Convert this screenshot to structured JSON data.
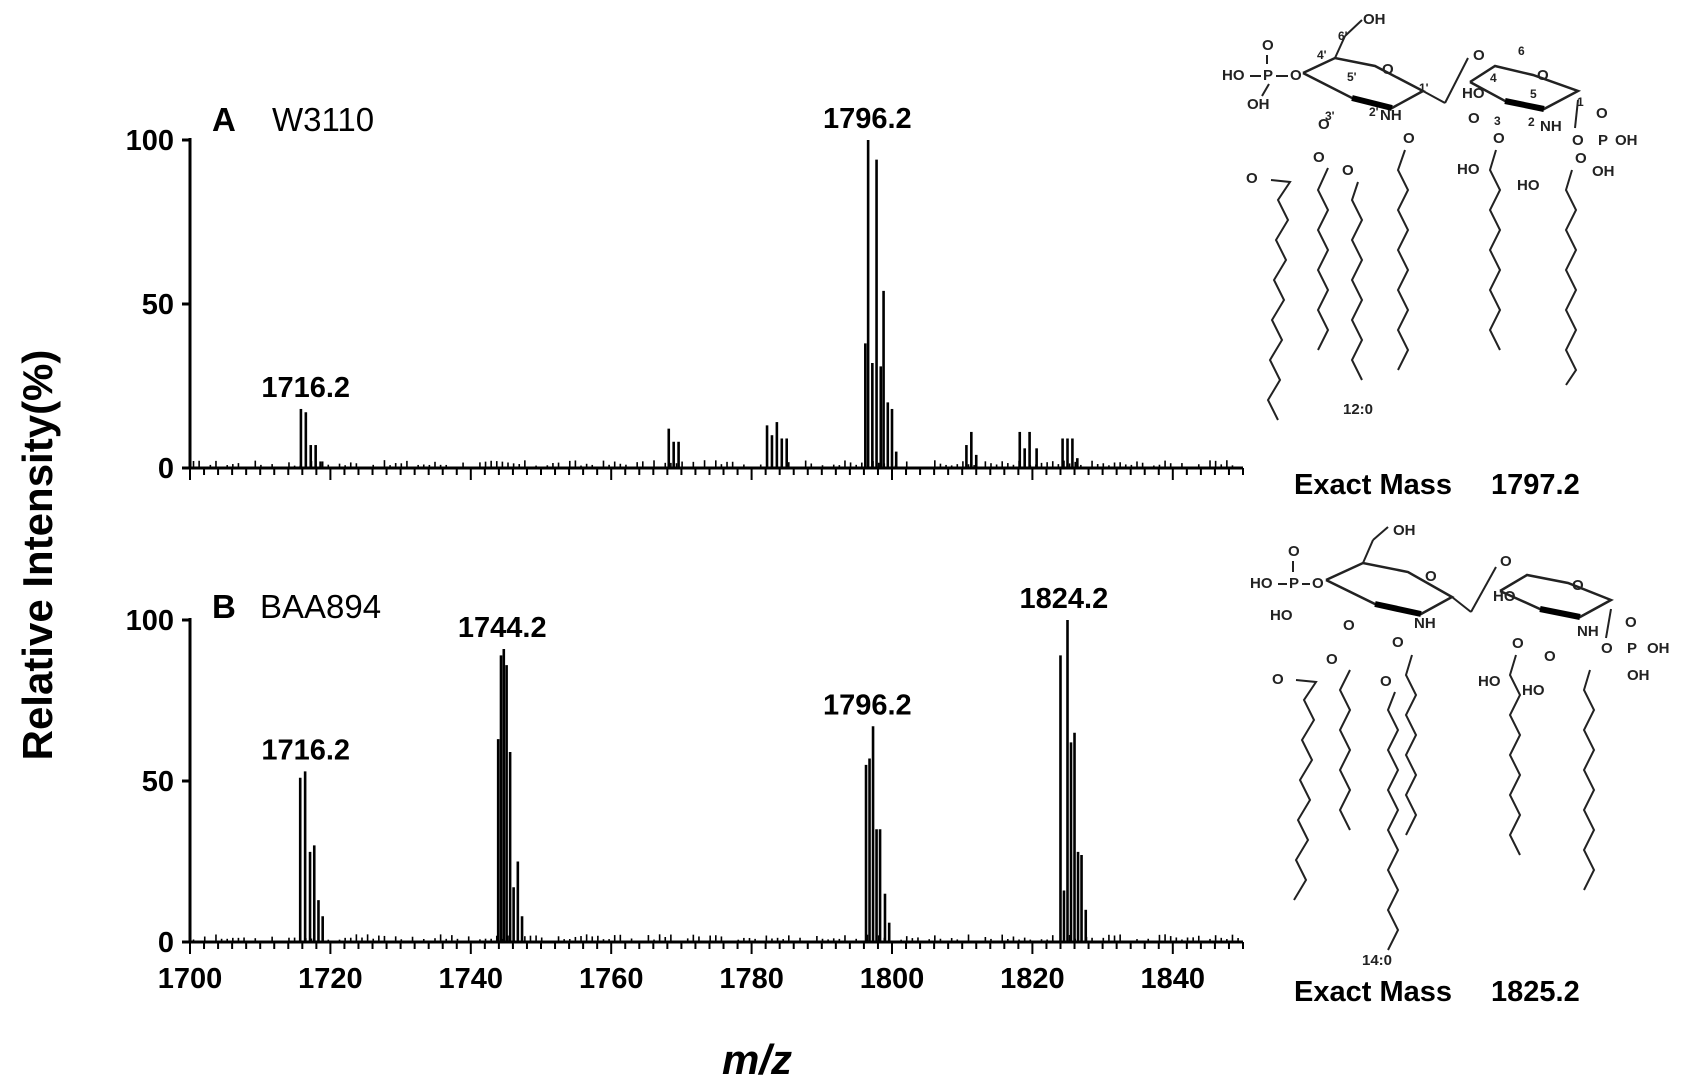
{
  "chart_data": [
    {
      "type": "bar",
      "panel": "A",
      "title": "W3110",
      "xlabel": "m/z",
      "ylabel": "Relative Intensity(%)",
      "xlim": [
        1700,
        1850
      ],
      "ylim": [
        0,
        100
      ],
      "yticks": [
        "0",
        "50",
        "100"
      ],
      "peaks": [
        {
          "x": 1715.8,
          "y": 18
        },
        {
          "x": 1716.5,
          "y": 17
        },
        {
          "x": 1717.2,
          "y": 7
        },
        {
          "x": 1717.9,
          "y": 7
        },
        {
          "x": 1718.6,
          "y": 2
        },
        {
          "x": 1768.2,
          "y": 12
        },
        {
          "x": 1768.9,
          "y": 8
        },
        {
          "x": 1769.6,
          "y": 8
        },
        {
          "x": 1782.2,
          "y": 13
        },
        {
          "x": 1782.9,
          "y": 10
        },
        {
          "x": 1783.6,
          "y": 14
        },
        {
          "x": 1784.3,
          "y": 9
        },
        {
          "x": 1785.0,
          "y": 9
        },
        {
          "x": 1796.2,
          "y": 38
        },
        {
          "x": 1796.6,
          "y": 100
        },
        {
          "x": 1797.2,
          "y": 32
        },
        {
          "x": 1797.8,
          "y": 94
        },
        {
          "x": 1798.4,
          "y": 31
        },
        {
          "x": 1798.8,
          "y": 54
        },
        {
          "x": 1799.4,
          "y": 20
        },
        {
          "x": 1800.0,
          "y": 18
        },
        {
          "x": 1800.6,
          "y": 5
        },
        {
          "x": 1810.6,
          "y": 7
        },
        {
          "x": 1811.3,
          "y": 11
        },
        {
          "x": 1812.0,
          "y": 4
        },
        {
          "x": 1818.2,
          "y": 11
        },
        {
          "x": 1818.9,
          "y": 6
        },
        {
          "x": 1819.6,
          "y": 11
        },
        {
          "x": 1820.6,
          "y": 6
        },
        {
          "x": 1824.3,
          "y": 9
        },
        {
          "x": 1825.0,
          "y": 9
        },
        {
          "x": 1825.7,
          "y": 9
        },
        {
          "x": 1826.4,
          "y": 3
        }
      ],
      "annotations": [
        {
          "x": 1716.2,
          "label": "1716.2"
        },
        {
          "x": 1796.2,
          "label": "1796.2"
        }
      ]
    },
    {
      "type": "bar",
      "panel": "B",
      "title": "BAA894",
      "xlabel": "m/z",
      "ylabel": "Relative Intensity(%)",
      "xlim": [
        1700,
        1850
      ],
      "ylim": [
        0,
        100
      ],
      "yticks": [
        "0",
        "50",
        "100"
      ],
      "xticks": [
        "1700",
        "1720",
        "1740",
        "1760",
        "1780",
        "1800",
        "1820",
        "1840"
      ],
      "peaks": [
        {
          "x": 1715.7,
          "y": 51
        },
        {
          "x": 1716.4,
          "y": 53
        },
        {
          "x": 1717.1,
          "y": 28
        },
        {
          "x": 1717.7,
          "y": 30
        },
        {
          "x": 1718.3,
          "y": 13
        },
        {
          "x": 1718.9,
          "y": 8
        },
        {
          "x": 1743.9,
          "y": 63
        },
        {
          "x": 1744.3,
          "y": 89
        },
        {
          "x": 1744.7,
          "y": 91
        },
        {
          "x": 1745.1,
          "y": 86
        },
        {
          "x": 1745.6,
          "y": 59
        },
        {
          "x": 1746.1,
          "y": 17
        },
        {
          "x": 1746.7,
          "y": 25
        },
        {
          "x": 1747.3,
          "y": 8
        },
        {
          "x": 1796.3,
          "y": 55
        },
        {
          "x": 1796.8,
          "y": 57
        },
        {
          "x": 1797.3,
          "y": 67
        },
        {
          "x": 1797.8,
          "y": 35
        },
        {
          "x": 1798.3,
          "y": 35
        },
        {
          "x": 1799.0,
          "y": 15
        },
        {
          "x": 1799.6,
          "y": 6
        },
        {
          "x": 1824.0,
          "y": 89
        },
        {
          "x": 1824.5,
          "y": 16
        },
        {
          "x": 1825.0,
          "y": 100
        },
        {
          "x": 1825.5,
          "y": 62
        },
        {
          "x": 1826.0,
          "y": 65
        },
        {
          "x": 1826.5,
          "y": 28
        },
        {
          "x": 1827.0,
          "y": 27
        },
        {
          "x": 1827.6,
          "y": 10
        }
      ],
      "annotations": [
        {
          "x": 1716.2,
          "label": "1716.2"
        },
        {
          "x": 1744.2,
          "label": "1744.2"
        },
        {
          "x": 1796.2,
          "label": "1796.2"
        },
        {
          "x": 1824.2,
          "label": "1824.2"
        }
      ]
    }
  ],
  "structures": [
    {
      "name": "lipid-a-structure-a",
      "exact_mass_label": "Exact Mass",
      "exact_mass_value": "1797.2",
      "chain_label": "12:0",
      "atom_labels": [
        "OH",
        "O",
        "P",
        "HO",
        "O",
        "O",
        "NH",
        "NH",
        "O",
        "HO",
        "O",
        "O",
        "O",
        "O",
        "HO",
        "HO",
        "O",
        "P",
        "OH",
        "OH"
      ],
      "position_labels": [
        "6'",
        "4'",
        "5'",
        "3'",
        "2'",
        "1'",
        "6",
        "4",
        "5",
        "3",
        "2",
        "1"
      ]
    },
    {
      "name": "lipid-a-structure-b",
      "exact_mass_label": "Exact Mass",
      "exact_mass_value": "1825.2",
      "chain_label": "14:0",
      "atom_labels": [
        "OH",
        "O",
        "P",
        "HO",
        "O",
        "O",
        "NH",
        "NH",
        "O",
        "HO",
        "O",
        "O",
        "O",
        "O",
        "HO",
        "HO",
        "O",
        "P",
        "OH",
        "OH"
      ]
    }
  ]
}
